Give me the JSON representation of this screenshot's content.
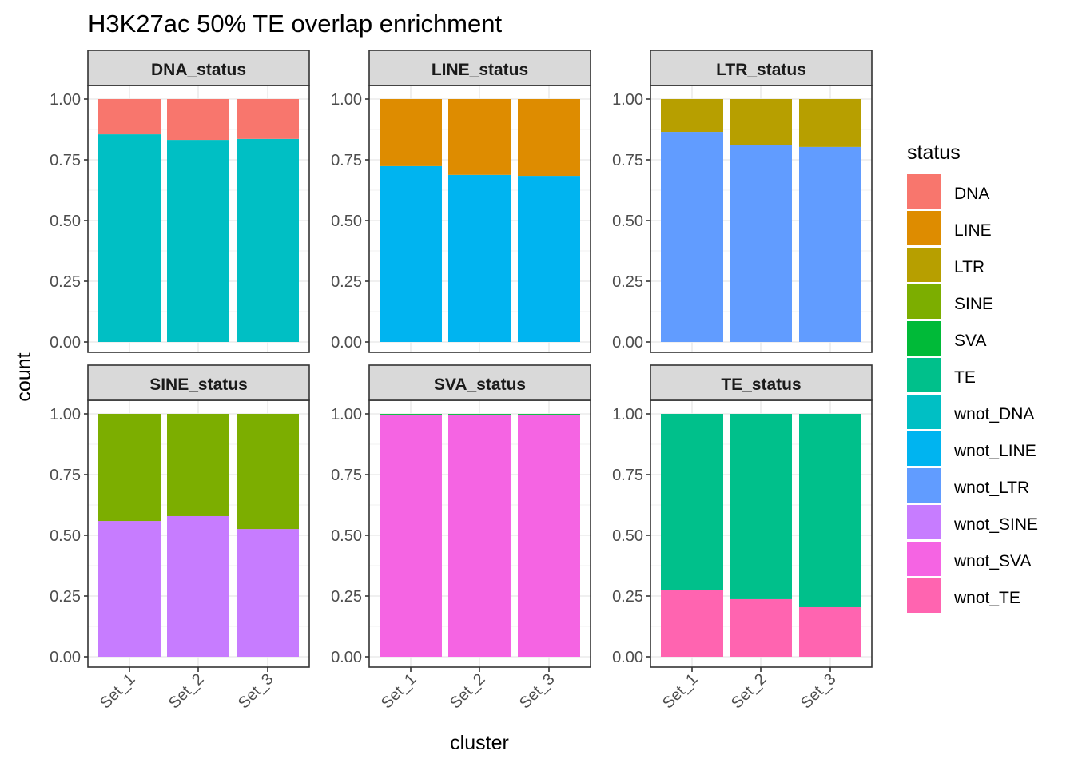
{
  "chart_data": {
    "type": "bar",
    "stacked": true,
    "title": "H3K27ac 50% TE overlap enrichment",
    "xlabel": "cluster",
    "ylabel": "count",
    "ylim": [
      0,
      1.1
    ],
    "yticks": [
      "0.00",
      "0.25",
      "0.50",
      "0.75",
      "1.00"
    ],
    "ytick_values": [
      0,
      0.25,
      0.5,
      0.75,
      1.0
    ],
    "categories": [
      "Set_1",
      "Set_2",
      "Set_3"
    ],
    "grid": true,
    "legend": {
      "title": "status",
      "position": "right",
      "entries": [
        {
          "label": "DNA",
          "color": "#F8766D"
        },
        {
          "label": "LINE",
          "color": "#DE8C00"
        },
        {
          "label": "LTR",
          "color": "#B79F00"
        },
        {
          "label": "SINE",
          "color": "#7CAE00"
        },
        {
          "label": "SVA",
          "color": "#00BA38"
        },
        {
          "label": "TE",
          "color": "#00C08B"
        },
        {
          "label": "wnot_DNA",
          "color": "#00BFC4"
        },
        {
          "label": "wnot_LINE",
          "color": "#00B4F0"
        },
        {
          "label": "wnot_LTR",
          "color": "#619CFF"
        },
        {
          "label": "wnot_SINE",
          "color": "#C77CFF"
        },
        {
          "label": "wnot_SVA",
          "color": "#F564E3"
        },
        {
          "label": "wnot_TE",
          "color": "#FF64B0"
        }
      ]
    },
    "facets": [
      {
        "strip": "DNA_status",
        "series": [
          {
            "name": "wnot_DNA",
            "values": [
              0.855,
              0.832,
              0.836
            ]
          },
          {
            "name": "DNA",
            "values": [
              0.145,
              0.168,
              0.164
            ]
          }
        ]
      },
      {
        "strip": "LINE_status",
        "series": [
          {
            "name": "wnot_LINE",
            "values": [
              0.724,
              0.688,
              0.684
            ]
          },
          {
            "name": "LINE",
            "values": [
              0.276,
              0.312,
              0.316
            ]
          }
        ]
      },
      {
        "strip": "LTR_status",
        "series": [
          {
            "name": "wnot_LTR",
            "values": [
              0.865,
              0.812,
              0.803
            ]
          },
          {
            "name": "LTR",
            "values": [
              0.135,
              0.188,
              0.197
            ]
          }
        ]
      },
      {
        "strip": "SINE_status",
        "series": [
          {
            "name": "wnot_SINE",
            "values": [
              0.559,
              0.579,
              0.526
            ]
          },
          {
            "name": "SINE",
            "values": [
              0.441,
              0.421,
              0.474
            ]
          }
        ]
      },
      {
        "strip": "SVA_status",
        "series": [
          {
            "name": "wnot_SVA",
            "values": [
              0.997,
              0.997,
              0.997
            ]
          },
          {
            "name": "SVA",
            "values": [
              0.003,
              0.003,
              0.003
            ]
          }
        ]
      },
      {
        "strip": "TE_status",
        "series": [
          {
            "name": "wnot_TE",
            "values": [
              0.273,
              0.237,
              0.204
            ]
          },
          {
            "name": "TE",
            "values": [
              0.727,
              0.763,
              0.796
            ]
          }
        ]
      }
    ]
  }
}
